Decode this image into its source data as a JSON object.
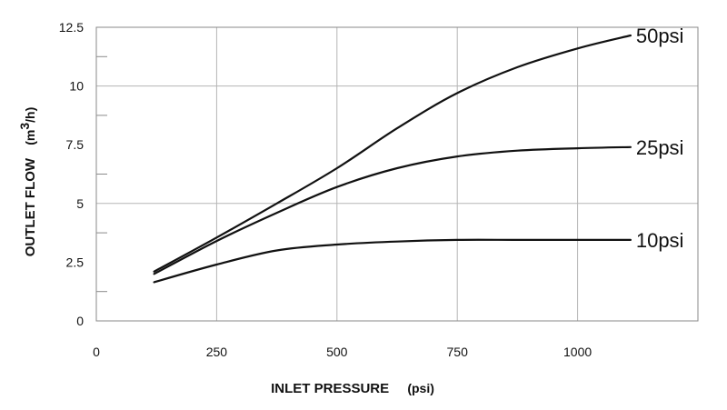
{
  "chart_data": {
    "type": "line",
    "xlabel": "INLET PRESSURE",
    "xlabel_unit": "(psi)",
    "ylabel": "OUTLET FLOW",
    "ylabel_unit_prefix": "(m",
    "ylabel_unit_sup": "3",
    "ylabel_unit_suffix": "/h)",
    "xlim": [
      0,
      1250
    ],
    "ylim": [
      0,
      12.5
    ],
    "x_ticks": [
      {
        "value": 0,
        "label": "0"
      },
      {
        "value": 250,
        "label": "250"
      },
      {
        "value": 500,
        "label": "500"
      },
      {
        "value": 750,
        "label": "750"
      },
      {
        "value": 1000,
        "label": "1000"
      }
    ],
    "y_ticks": [
      {
        "value": 0,
        "label": "0"
      },
      {
        "value": 2.5,
        "label": "2.5"
      },
      {
        "value": 5,
        "label": "5"
      },
      {
        "value": 7.5,
        "label": "7.5"
      },
      {
        "value": 10,
        "label": "10"
      },
      {
        "value": 12.5,
        "label": "12.5"
      }
    ],
    "x_grid": [
      0,
      250,
      500,
      750,
      1000,
      1250
    ],
    "y_grid": [
      0,
      5,
      10,
      12.5
    ],
    "y_minor_ticks": [
      1.25,
      3.75,
      6.25,
      8.75,
      11.25
    ],
    "grid": true,
    "legend": "inline labels at right end of each line",
    "series": [
      {
        "name": "50psi",
        "x": [
          120,
          250,
          375,
          500,
          625,
          750,
          875,
          1000,
          1110
        ],
        "y": [
          2.1,
          3.55,
          5.0,
          6.5,
          8.2,
          9.7,
          10.8,
          11.6,
          12.15
        ]
      },
      {
        "name": "25psi",
        "x": [
          120,
          250,
          375,
          500,
          625,
          750,
          875,
          1000,
          1110
        ],
        "y": [
          2.0,
          3.4,
          4.6,
          5.7,
          6.5,
          7.0,
          7.25,
          7.35,
          7.4
        ]
      },
      {
        "name": "10psi",
        "x": [
          120,
          250,
          375,
          500,
          625,
          750,
          875,
          1000,
          1110
        ],
        "y": [
          1.65,
          2.4,
          3.0,
          3.25,
          3.38,
          3.45,
          3.45,
          3.45,
          3.45
        ]
      }
    ]
  }
}
